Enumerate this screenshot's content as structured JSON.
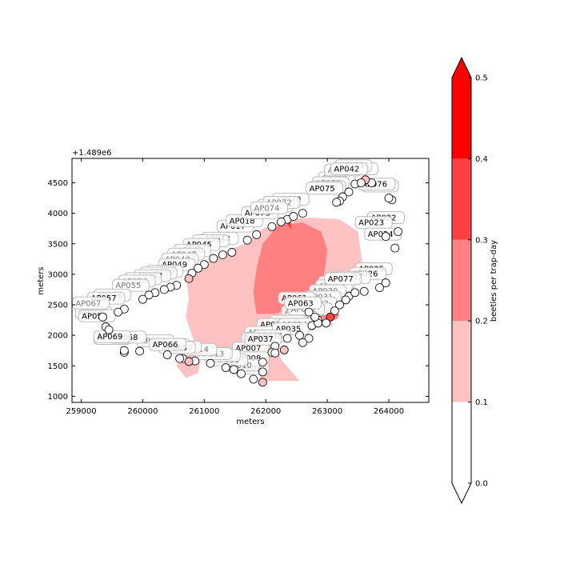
{
  "chart_data": {
    "type": "scatter",
    "xlabel": "meters",
    "ylabel": "meters",
    "offset_text": "+1.489e6",
    "xlim": [
      258850,
      264650
    ],
    "ylim": [
      900,
      4900
    ],
    "xticks": [
      259000,
      260000,
      261000,
      262000,
      263000,
      264000
    ],
    "yticks": [
      1000,
      1500,
      2000,
      2500,
      3000,
      3500,
      4000,
      4500
    ],
    "colorbar": {
      "label": "beetles per trap-day",
      "ticks": [
        "0.0",
        "0.1",
        "0.2",
        "0.3",
        "0.4",
        "0.5"
      ],
      "levels": [
        0.0,
        0.1,
        0.2,
        0.3,
        0.4,
        0.5
      ],
      "colors": [
        "#ffffff",
        "#ffc2c2",
        "#ff8080",
        "#ff4040",
        "#ff0000"
      ],
      "extend": "both",
      "under_color": "#ffffff",
      "over_color": "#ff0000"
    },
    "contours": [
      {
        "level": 0.1,
        "color": "#ffc2c2",
        "polygon": [
          [
            260700,
            3000
          ],
          [
            260750,
            2600
          ],
          [
            260700,
            2300
          ],
          [
            260800,
            2000
          ],
          [
            260950,
            1650
          ],
          [
            260900,
            1380
          ],
          [
            260700,
            1300
          ],
          [
            260550,
            1500
          ],
          [
            260650,
            1800
          ],
          [
            261200,
            1780
          ],
          [
            261800,
            1750
          ],
          [
            261950,
            1650
          ],
          [
            261900,
            1250
          ],
          [
            262550,
            1250
          ],
          [
            262250,
            1600
          ],
          [
            262150,
            1950
          ],
          [
            262400,
            2200
          ],
          [
            262650,
            2300
          ],
          [
            263100,
            2150
          ],
          [
            263000,
            2400
          ],
          [
            263200,
            2600
          ],
          [
            263400,
            2800
          ],
          [
            263600,
            2950
          ],
          [
            263550,
            3300
          ],
          [
            263500,
            3700
          ],
          [
            263200,
            3900
          ],
          [
            262750,
            3930
          ],
          [
            262350,
            3900
          ],
          [
            261950,
            3750
          ],
          [
            261650,
            3500
          ],
          [
            261300,
            3350
          ],
          [
            260950,
            3150
          ]
        ]
      },
      {
        "level": 0.2,
        "color": "#ff8080",
        "polygon": [
          [
            261850,
            2350
          ],
          [
            261800,
            2700
          ],
          [
            261850,
            3100
          ],
          [
            261950,
            3500
          ],
          [
            262200,
            3800
          ],
          [
            262600,
            3850
          ],
          [
            262900,
            3700
          ],
          [
            263000,
            3400
          ],
          [
            262950,
            3000
          ],
          [
            262800,
            2650
          ],
          [
            262500,
            2450
          ],
          [
            262150,
            2350
          ]
        ]
      },
      {
        "level": 0.2,
        "color": "#ff8080",
        "polygon": [
          [
            262850,
            2330
          ],
          [
            263000,
            2240
          ],
          [
            263150,
            2260
          ],
          [
            263200,
            2340
          ],
          [
            263050,
            2400
          ],
          [
            262900,
            2380
          ]
        ]
      },
      {
        "level": 0.3,
        "color": "#ff4040",
        "polygon": [
          [
            262280,
            3920
          ],
          [
            262370,
            3790
          ],
          [
            262420,
            3740
          ],
          [
            262400,
            3880
          ],
          [
            262330,
            3960
          ]
        ]
      },
      {
        "level": 0.3,
        "color": "#ff4040",
        "polygon": [
          [
            262980,
            2280
          ],
          [
            263080,
            2260
          ],
          [
            263120,
            2320
          ],
          [
            263030,
            2340
          ]
        ]
      }
    ],
    "traps": [
      {
        "id": "AP001",
        "x": 262850,
        "y": 2250,
        "value": 0.0,
        "label_visible": false
      },
      {
        "id": "AP002",
        "x": 262750,
        "y": 2160,
        "value": 0.0,
        "label_visible": false
      },
      {
        "id": "AP003",
        "x": 262550,
        "y": 2000,
        "value": 0.0,
        "label_visible": true
      },
      {
        "id": "AP004",
        "x": 262350,
        "y": 1950,
        "value": 0.0,
        "label_visible": true
      },
      {
        "id": "AP005",
        "x": 262150,
        "y": 1820,
        "value": 0.0,
        "label_visible": false
      },
      {
        "id": "AP006",
        "x": 262100,
        "y": 1720,
        "value": 0.0,
        "label_visible": true
      },
      {
        "id": "AP007",
        "x": 261950,
        "y": 1560,
        "value": 0.0,
        "label_visible": true
      },
      {
        "id": "AP008",
        "x": 261950,
        "y": 1400,
        "value": 0.0,
        "label_visible": true
      },
      {
        "id": "AP009",
        "x": 261950,
        "y": 1230,
        "value": 0.13,
        "label_visible": true
      },
      {
        "id": "AP010",
        "x": 261800,
        "y": 1280,
        "value": 0.0,
        "label_visible": false
      },
      {
        "id": "AP011",
        "x": 261600,
        "y": 1370,
        "value": 0.0,
        "label_visible": false
      },
      {
        "id": "AP012",
        "x": 261480,
        "y": 1440,
        "value": 0.0,
        "label_visible": false
      },
      {
        "id": "AP013",
        "x": 261350,
        "y": 1470,
        "value": 0.0,
        "label_visible": false
      },
      {
        "id": "AP014",
        "x": 261100,
        "y": 1540,
        "value": 0.0,
        "label_visible": false
      },
      {
        "id": "AP015",
        "x": 260850,
        "y": 1580,
        "value": 0.0,
        "label_visible": false
      },
      {
        "id": "AP016",
        "x": 260650,
        "y": 1620,
        "value": 0.0,
        "label_visible": false
      },
      {
        "id": "AP017",
        "x": 261700,
        "y": 3560,
        "value": 0.0,
        "label_visible": true
      },
      {
        "id": "AP018",
        "x": 261850,
        "y": 3650,
        "value": 0.0,
        "label_visible": true
      },
      {
        "id": "AP019",
        "x": 263720,
        "y": 4500,
        "value": 0.0,
        "label_visible": false
      },
      {
        "id": "AP020",
        "x": 263620,
        "y": 4550,
        "value": 0.12,
        "label_visible": true
      },
      {
        "id": "AP021",
        "x": 264050,
        "y": 4220,
        "value": 0.0,
        "label_visible": false
      },
      {
        "id": "AP022",
        "x": 264150,
        "y": 3700,
        "value": 0.0,
        "label_visible": true
      },
      {
        "id": "AP023",
        "x": 263950,
        "y": 3620,
        "value": 0.0,
        "label_visible": true
      },
      {
        "id": "AP024",
        "x": 264100,
        "y": 3430,
        "value": 0.0,
        "label_visible": true
      },
      {
        "id": "AP025",
        "x": 263950,
        "y": 2860,
        "value": 0.0,
        "label_visible": true
      },
      {
        "id": "AP026",
        "x": 263850,
        "y": 2780,
        "value": 0.0,
        "label_visible": true
      },
      {
        "id": "AP027",
        "x": 263600,
        "y": 2720,
        "value": 0.0,
        "label_visible": true
      },
      {
        "id": "AP028",
        "x": 263350,
        "y": 2640,
        "value": 0.0,
        "label_visible": false
      },
      {
        "id": "AP029",
        "x": 263300,
        "y": 2580,
        "value": 0.0,
        "label_visible": false
      },
      {
        "id": "AP030",
        "x": 263200,
        "y": 2500,
        "value": 0.0,
        "label_visible": false
      },
      {
        "id": "AP031",
        "x": 263120,
        "y": 2400,
        "value": 0.0,
        "label_visible": false
      },
      {
        "id": "AP032",
        "x": 263050,
        "y": 2300,
        "value": 0.38,
        "label_visible": false
      },
      {
        "id": "AP033",
        "x": 262980,
        "y": 2200,
        "value": 0.0,
        "label_visible": false
      },
      {
        "id": "AP034",
        "x": 262700,
        "y": 1950,
        "value": 0.0,
        "label_visible": false
      },
      {
        "id": "AP035",
        "x": 262600,
        "y": 1880,
        "value": 0.0,
        "label_visible": true
      },
      {
        "id": "AP036",
        "x": 262300,
        "y": 1760,
        "value": 0.15,
        "label_visible": true
      },
      {
        "id": "AP037",
        "x": 262150,
        "y": 1710,
        "value": 0.0,
        "label_visible": true
      },
      {
        "id": "AP038",
        "x": 263350,
        "y": 4350,
        "value": 0.0,
        "label_visible": false
      },
      {
        "id": "AP039",
        "x": 263250,
        "y": 4270,
        "value": 0.0,
        "label_visible": false
      },
      {
        "id": "AP040",
        "x": 263200,
        "y": 4200,
        "value": 0.0,
        "label_visible": false
      },
      {
        "id": "AP041",
        "x": 263450,
        "y": 4480,
        "value": 0.0,
        "label_visible": false
      },
      {
        "id": "AP042",
        "x": 263550,
        "y": 4500,
        "value": 0.0,
        "label_visible": true
      },
      {
        "id": "AP043",
        "x": 261450,
        "y": 3360,
        "value": 0.0,
        "label_visible": true
      },
      {
        "id": "AP044",
        "x": 261300,
        "y": 3320,
        "value": 0.0,
        "label_visible": false
      },
      {
        "id": "AP045",
        "x": 261150,
        "y": 3260,
        "value": 0.0,
        "label_visible": true
      },
      {
        "id": "AP046",
        "x": 261000,
        "y": 3160,
        "value": 0.0,
        "label_visible": false
      },
      {
        "id": "AP047",
        "x": 260900,
        "y": 3100,
        "value": 0.0,
        "label_visible": false
      },
      {
        "id": "AP048",
        "x": 260800,
        "y": 3020,
        "value": 0.0,
        "label_visible": false
      },
      {
        "id": "AP049",
        "x": 260750,
        "y": 2930,
        "value": 0.13,
        "label_visible": true
      },
      {
        "id": "AP050",
        "x": 260550,
        "y": 2820,
        "value": 0.0,
        "label_visible": true
      },
      {
        "id": "AP051",
        "x": 260450,
        "y": 2790,
        "value": 0.0,
        "label_visible": false
      },
      {
        "id": "AP052",
        "x": 260350,
        "y": 2750,
        "value": 0.0,
        "label_visible": true
      },
      {
        "id": "AP053",
        "x": 260200,
        "y": 2700,
        "value": 0.0,
        "label_visible": false
      },
      {
        "id": "AP054",
        "x": 260100,
        "y": 2660,
        "value": 0.0,
        "label_visible": false
      },
      {
        "id": "AP055",
        "x": 260000,
        "y": 2590,
        "value": 0.0,
        "label_visible": false
      },
      {
        "id": "AP056",
        "x": 259700,
        "y": 2430,
        "value": 0.0,
        "label_visible": true
      },
      {
        "id": "AP057",
        "x": 259600,
        "y": 2380,
        "value": 0.0,
        "label_visible": true
      },
      {
        "id": "AP058",
        "x": 259400,
        "y": 2140,
        "value": 0.0,
        "label_visible": true
      },
      {
        "id": "AP059",
        "x": 259450,
        "y": 2090,
        "value": 0.0,
        "label_visible": true
      },
      {
        "id": "AP060",
        "x": 259700,
        "y": 1720,
        "value": 0.0,
        "label_visible": true
      },
      {
        "id": "AP061",
        "x": 262700,
        "y": 2380,
        "value": 0.0,
        "label_visible": true
      },
      {
        "id": "AP062",
        "x": 262850,
        "y": 2200,
        "value": 0.0,
        "label_visible": false
      },
      {
        "id": "AP063",
        "x": 262800,
        "y": 2300,
        "value": 0.0,
        "label_visible": true
      },
      {
        "id": "AP064",
        "x": 260400,
        "y": 1680,
        "value": 0.0,
        "label_visible": false
      },
      {
        "id": "AP065",
        "x": 260750,
        "y": 1570,
        "value": 0.13,
        "label_visible": true
      },
      {
        "id": "AP066",
        "x": 260600,
        "y": 1620,
        "value": 0.0,
        "label_visible": true
      },
      {
        "id": "AP067",
        "x": 259350,
        "y": 2300,
        "value": 0.0,
        "label_visible": false
      },
      {
        "id": "AP068",
        "x": 259950,
        "y": 1740,
        "value": 0.0,
        "label_visible": true
      },
      {
        "id": "AP069",
        "x": 259700,
        "y": 1750,
        "value": 0.0,
        "label_visible": true
      },
      {
        "id": "AP070",
        "x": 262600,
        "y": 4000,
        "value": 0.0,
        "label_visible": true
      },
      {
        "id": "AP071",
        "x": 262350,
        "y": 3900,
        "value": 0.0,
        "label_visible": false
      },
      {
        "id": "AP072",
        "x": 262450,
        "y": 3950,
        "value": 0.0,
        "label_visible": false
      },
      {
        "id": "AP073",
        "x": 262100,
        "y": 3780,
        "value": 0.0,
        "label_visible": true
      },
      {
        "id": "AP074",
        "x": 262250,
        "y": 3860,
        "value": 0.0,
        "label_visible": false
      },
      {
        "id": "AP075",
        "x": 263150,
        "y": 4180,
        "value": 0.0,
        "label_visible": true
      },
      {
        "id": "AP076",
        "x": 264000,
        "y": 4250,
        "value": 0.0,
        "label_visible": true
      },
      {
        "id": "AP077",
        "x": 263450,
        "y": 2700,
        "value": 0.0,
        "label_visible": true
      }
    ]
  }
}
